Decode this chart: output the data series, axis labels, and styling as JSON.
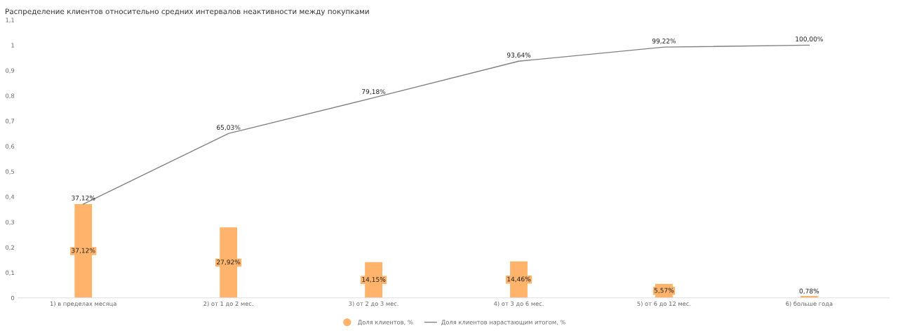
{
  "chart_data": {
    "type": "bar",
    "title": "Распределение клиентов относительно средних интервалов неактивности между покупками",
    "categories": [
      "1) в пределах месяца",
      "2) от 1 до 2 мес.",
      "3) от 2 до 3 мес.",
      "4) от 3 до 6 мес.",
      "5) от 6 до 12 мес.",
      "6) больше года"
    ],
    "series": [
      {
        "name": "Доля клиентов, %",
        "color": "#ffb36b",
        "values": [
          0.3712,
          0.2792,
          0.1415,
          0.1446,
          0.0557,
          0.0078
        ],
        "value_labels": [
          "37,12%",
          "27,92%",
          "14,15%",
          "14,46%",
          "5,57%",
          "0,78%"
        ]
      },
      {
        "name": "Доля клиентов нарастающим итогом, %",
        "type": "line",
        "color": "#808080",
        "values": [
          0.3712,
          0.6503,
          0.7918,
          0.9364,
          0.9922,
          1.0
        ],
        "value_labels": [
          "37,12%",
          "65,03%",
          "79,18%",
          "93,64%",
          "99,22%",
          "100,00%"
        ]
      }
    ],
    "ylim": [
      0,
      1.1
    ],
    "yticks": [
      0,
      {
        "value": 0.1,
        "label": "0,1"
      },
      {
        "value": 0.2,
        "label": "0,2"
      },
      {
        "value": 0.3,
        "label": "0,3"
      },
      {
        "value": 0.4,
        "label": "0,4"
      },
      {
        "value": 0.5,
        "label": "0,5"
      },
      {
        "value": 0.6,
        "label": "0,6"
      },
      {
        "value": 0.7,
        "label": "0,7"
      },
      {
        "value": 0.8,
        "label": "0,8"
      },
      {
        "value": 0.9,
        "label": "0,9"
      },
      1,
      {
        "value": 1.1,
        "label": "1,1"
      }
    ],
    "legend": "bottom",
    "grid": false,
    "marker": "none",
    "line_style": "solid"
  }
}
